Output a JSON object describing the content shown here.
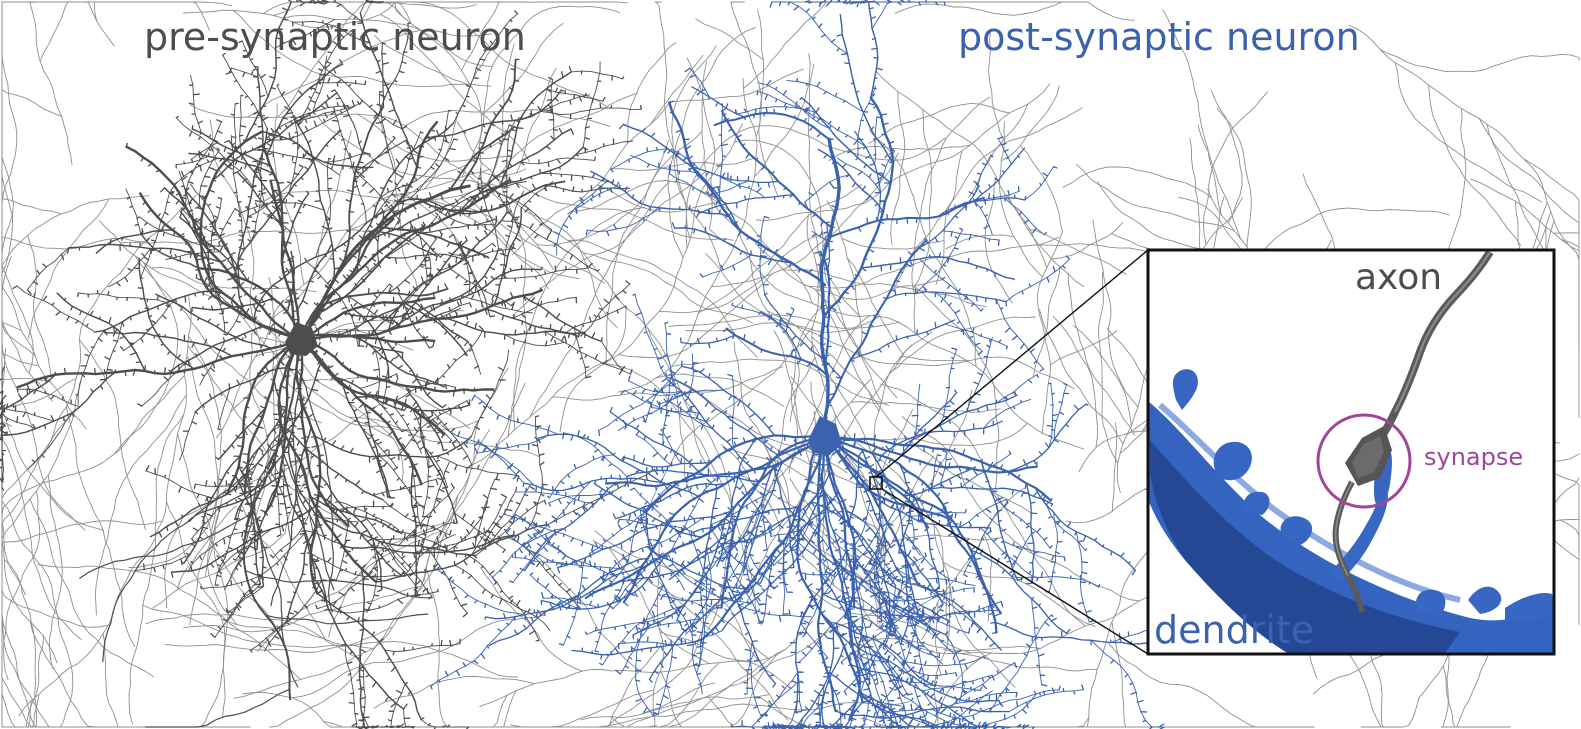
{
  "labels": {
    "pre": "pre-synaptic neuron",
    "post": "post-synaptic neuron",
    "axon": "axon",
    "dendrite": "dendrite",
    "synapse": "synapse"
  },
  "colors": {
    "pre_neuron": "#4d4d4d",
    "post_neuron": "#3b62ad",
    "dendrite_dark": "#1d3a7a",
    "synapse_ring": "#a0449e",
    "background_axons": "#9a9a9a",
    "inset_border": "#111111"
  }
}
